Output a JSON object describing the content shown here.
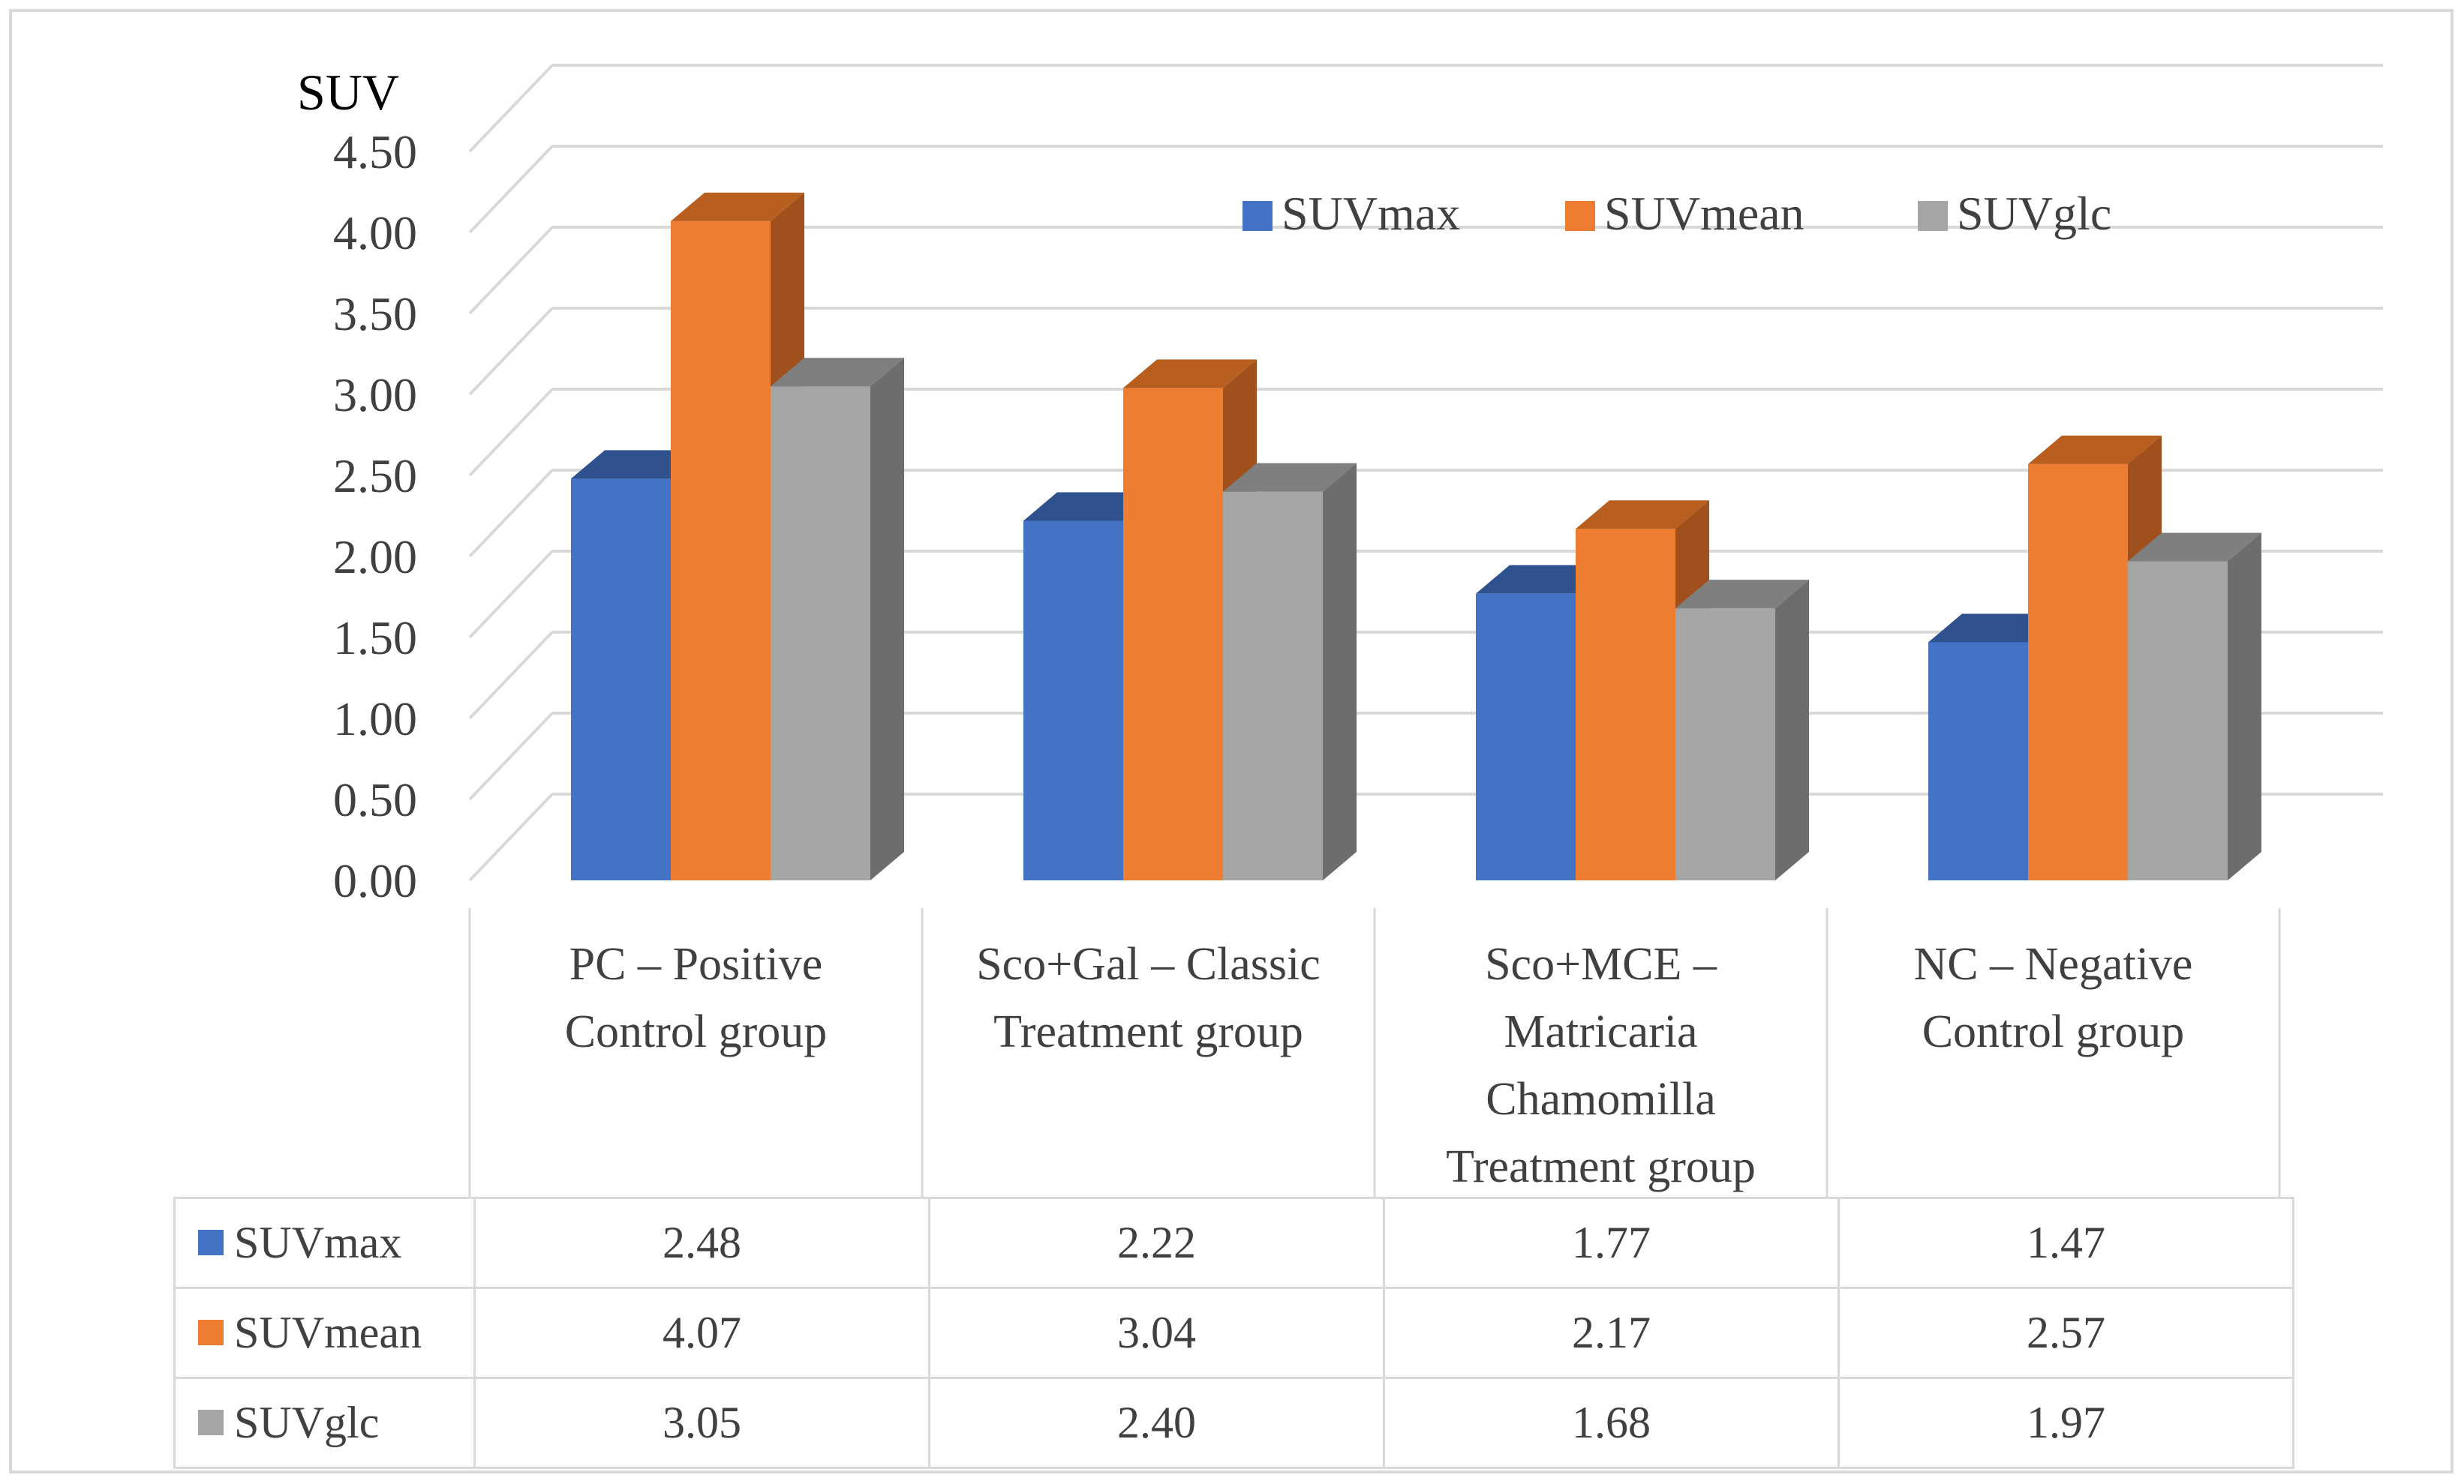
{
  "chart_data": {
    "type": "bar",
    "style": "3d-clustered-column-with-data-table",
    "ylabel": "SUV",
    "ylim": [
      0,
      4.5
    ],
    "yticks": [
      "0.00",
      "0.50",
      "1.00",
      "1.50",
      "2.00",
      "2.50",
      "3.00",
      "3.50",
      "4.00",
      "4.50"
    ],
    "grid": true,
    "legend_position": "top-right",
    "categories": [
      [
        "PC – Positive",
        "Control group"
      ],
      [
        "Sco+Gal – Classic",
        "Treatment group"
      ],
      [
        "Sco+MCE –",
        "Matricaria",
        "Chamomilla",
        "Treatment group"
      ],
      [
        "NC – Negative",
        "Control group"
      ]
    ],
    "series": [
      {
        "name": "SUVmax",
        "color": "#4472c4",
        "side": "#2e5290",
        "top": "#2f528f",
        "values": [
          2.48,
          2.22,
          1.77,
          1.47
        ],
        "labels": [
          "2.48",
          "2.22",
          "1.77",
          "1.47"
        ]
      },
      {
        "name": "SUVmean",
        "color": "#ed7d31",
        "side": "#a0501d",
        "top": "#b85f20",
        "values": [
          4.07,
          3.04,
          2.17,
          2.57
        ],
        "labels": [
          "4.07",
          "3.04",
          "2.17",
          "2.57"
        ]
      },
      {
        "name": "SUVglc",
        "color": "#a5a5a5",
        "side": "#6d6d6d",
        "top": "#7f7f7f",
        "values": [
          3.05,
          2.4,
          1.68,
          1.97
        ],
        "labels": [
          "3.05",
          "2.40",
          "1.68",
          "1.97"
        ]
      }
    ]
  }
}
